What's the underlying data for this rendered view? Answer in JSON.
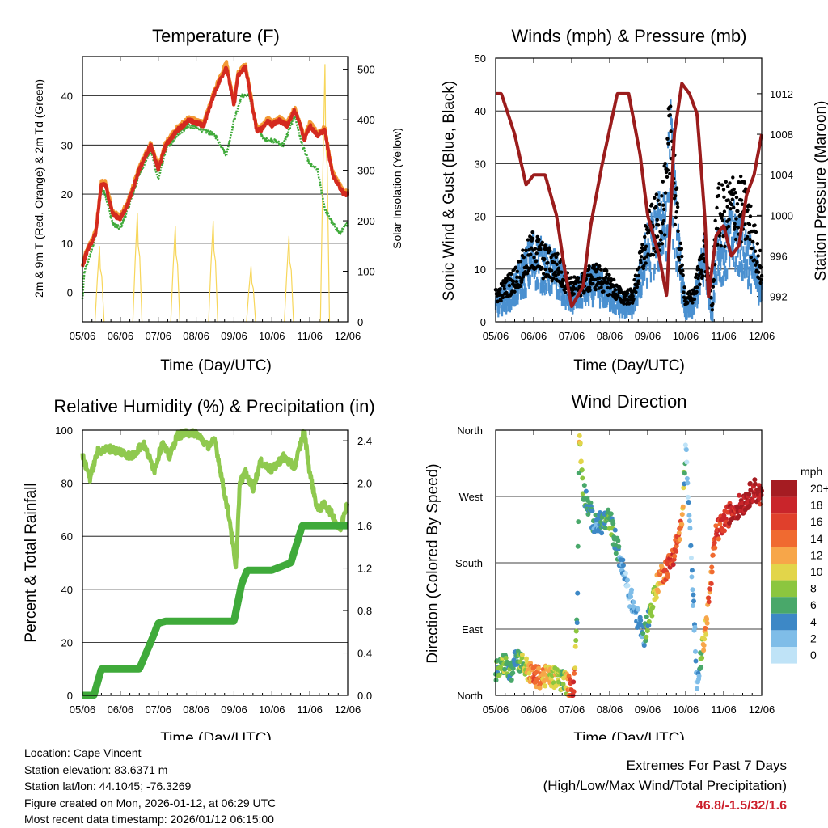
{
  "chart_data": [
    {
      "type": "line",
      "title": "Temperature (F)",
      "xlabel": "Time (Day/UTC)",
      "ylabel": "2m & 9m T (Red, Orange) & 2m Td (Green)",
      "y2label": "Solar Insolation (Yellow)",
      "x_ticks": [
        "05/06",
        "06/06",
        "07/06",
        "08/06",
        "09/06",
        "10/06",
        "11/06",
        "12/06"
      ],
      "ylim": [
        -6,
        48
      ],
      "y_ticks": [
        0,
        10,
        20,
        30,
        40
      ],
      "y2lim": [
        0,
        525
      ],
      "y2_ticks": [
        0,
        100,
        200,
        300,
        400,
        500
      ],
      "series": [
        {
          "name": "2m T",
          "color": "#d42a1f",
          "axis": "left",
          "x": [
            0,
            0.1,
            0.35,
            0.5,
            0.6,
            0.8,
            1.0,
            1.2,
            1.5,
            1.8,
            2.0,
            2.2,
            2.5,
            2.8,
            3.2,
            3.5,
            3.8,
            4.0,
            4.1,
            4.3,
            4.5,
            4.6,
            4.7,
            4.8,
            4.9,
            5.0,
            5.2,
            5.4,
            5.6,
            5.75,
            5.85,
            6.0,
            6.2,
            6.4,
            6.5,
            6.6,
            6.75,
            6.9,
            7.0
          ],
          "values": [
            5,
            8,
            12,
            22,
            22,
            16,
            15,
            18,
            25,
            30,
            25,
            30,
            33,
            35,
            34,
            41,
            46,
            38,
            44,
            46,
            37,
            33,
            33,
            34,
            35,
            34,
            35,
            34,
            37,
            34,
            31,
            34,
            32,
            33,
            28,
            24,
            22,
            20,
            20
          ]
        },
        {
          "name": "9m T",
          "color": "#f39a35",
          "axis": "left",
          "x": [
            0,
            0.1,
            0.35,
            0.5,
            0.6,
            0.8,
            1.0,
            1.2,
            1.5,
            1.8,
            2.0,
            2.2,
            2.5,
            2.8,
            3.2,
            3.5,
            3.8,
            4.0,
            4.1,
            4.3,
            4.5,
            4.6,
            4.7,
            4.8,
            4.9,
            5.0,
            5.2,
            5.4,
            5.6,
            5.75,
            5.85,
            6.0,
            6.2,
            6.4,
            6.5,
            6.6,
            6.75,
            6.9,
            7.0
          ],
          "values": [
            5.5,
            8.5,
            12.5,
            22.5,
            22.5,
            16.5,
            15.5,
            18.5,
            25.5,
            30.5,
            25.5,
            30.5,
            33.5,
            35.5,
            34.5,
            41.5,
            46.8,
            38.5,
            44.5,
            46.5,
            37.5,
            33.5,
            33.5,
            34.5,
            35.5,
            34.5,
            35.5,
            34.5,
            37.5,
            34.5,
            31.5,
            34.5,
            32.5,
            33.5,
            28.5,
            24.5,
            22.5,
            20.5,
            20.5
          ]
        },
        {
          "name": "2m Td",
          "color": "#3faa3a",
          "axis": "left",
          "x": [
            0,
            0.05,
            0.3,
            0.5,
            0.6,
            0.8,
            1.0,
            1.2,
            1.5,
            1.8,
            2.0,
            2.2,
            2.5,
            2.8,
            3.2,
            3.5,
            3.8,
            4.0,
            4.2,
            4.4,
            4.6,
            4.8,
            5.0,
            5.3,
            5.6,
            5.8,
            6.0,
            6.2,
            6.4,
            6.6,
            6.8,
            7.0
          ],
          "values": [
            -1.5,
            4,
            10,
            21,
            20,
            14,
            13,
            17,
            24,
            29,
            23,
            29,
            32,
            34,
            33,
            32,
            28,
            35,
            40,
            40,
            34,
            31,
            31,
            30,
            36,
            30,
            26,
            25,
            17,
            14,
            12,
            14
          ]
        },
        {
          "name": "Solar Insolation",
          "color": "#f7d65a",
          "axis": "right",
          "values_peaks": [
            {
              "day": 0.45,
              "value": 150
            },
            {
              "day": 1.45,
              "value": 215
            },
            {
              "day": 2.45,
              "value": 190
            },
            {
              "day": 3.45,
              "value": 200
            },
            {
              "day": 4.45,
              "value": 110
            },
            {
              "day": 5.45,
              "value": 170
            },
            {
              "day": 6.4,
              "value": 510
            }
          ]
        }
      ]
    },
    {
      "type": "line",
      "title": "Winds (mph) & Pressure (mb)",
      "xlabel": "Time (Day/UTC)",
      "ylabel": "Sonic Wind & Gust (Blue, Black)",
      "y2label": "Station Pressure (Maroon)",
      "x_ticks": [
        "05/06",
        "06/06",
        "07/06",
        "08/06",
        "09/06",
        "10/06",
        "11/06",
        "12/06"
      ],
      "ylim": [
        0,
        50
      ],
      "y_ticks": [
        0,
        10,
        20,
        30,
        40,
        50
      ],
      "y2lim": [
        989.5,
        1015.5
      ],
      "y2_ticks": [
        992,
        996,
        1000,
        1004,
        1008,
        1012
      ],
      "series": [
        {
          "name": "Sonic Wind",
          "color": "#4a90d0",
          "axis": "left",
          "x": [
            0,
            0.5,
            1.0,
            1.3,
            1.6,
            2.0,
            2.3,
            2.6,
            3.0,
            3.3,
            3.6,
            4.0,
            4.3,
            4.5,
            4.6,
            4.8,
            5.0,
            5.2,
            5.5,
            5.7,
            5.8,
            6.0,
            6.3,
            6.6,
            7.0
          ],
          "values": [
            4,
            7,
            13,
            11,
            10,
            5,
            7,
            8,
            6,
            4,
            4,
            14,
            18,
            22,
            32,
            14,
            3,
            4,
            13,
            2,
            15,
            14,
            17,
            14,
            7
          ]
        },
        {
          "name": "Gust",
          "color": "#000000",
          "axis": "left",
          "x": [
            0,
            0.5,
            1.0,
            1.3,
            1.6,
            2.0,
            2.3,
            2.6,
            3.0,
            3.3,
            3.6,
            4.0,
            4.3,
            4.5,
            4.6,
            4.8,
            5.0,
            5.2,
            5.5,
            5.7,
            5.8,
            6.0,
            6.3,
            6.6,
            7.0
          ],
          "values": [
            6,
            10,
            17,
            14,
            13,
            8,
            9,
            11,
            9,
            6,
            6,
            20,
            24,
            30,
            48,
            20,
            5,
            6,
            17,
            3,
            25,
            25,
            28,
            25,
            12
          ]
        },
        {
          "name": "Station Pressure",
          "color": "#9b1c1c",
          "axis": "right",
          "x": [
            0,
            0.15,
            0.5,
            0.8,
            1.0,
            1.3,
            1.6,
            1.8,
            2.0,
            2.3,
            2.5,
            2.8,
            3.2,
            3.5,
            3.8,
            4.0,
            4.3,
            4.5,
            4.7,
            4.9,
            5.1,
            5.3,
            5.5,
            5.6,
            5.8,
            6.0,
            6.2,
            6.4,
            6.6,
            6.8,
            7.0
          ],
          "values": [
            1012,
            1012,
            1008,
            1003,
            1004,
            1004,
            1000,
            995,
            991,
            993,
            999,
            1005,
            1012,
            1012,
            1006,
            1000,
            996,
            992,
            1008,
            1013,
            1012,
            1010,
            1000,
            992,
            998,
            999,
            996,
            997,
            1002,
            1004,
            1008
          ]
        }
      ]
    },
    {
      "type": "line",
      "title": "Relative Humidity (%) & Precipitation (in)",
      "xlabel": "Time (Day/UTC)",
      "ylabel": "Percent & Total Rainfall",
      "x_ticks": [
        "05/06",
        "06/06",
        "07/06",
        "08/06",
        "09/06",
        "10/06",
        "11/06",
        "12/06"
      ],
      "ylim": [
        0,
        100
      ],
      "y_ticks": [
        0,
        20,
        40,
        60,
        80,
        100
      ],
      "y2lim": [
        0,
        2.5
      ],
      "y2_ticks": [
        "0.0",
        "0.4",
        "0.8",
        "1.2",
        "1.6",
        "2.0",
        "2.4"
      ],
      "series": [
        {
          "name": "Relative Humidity",
          "color": "#8fc94f",
          "axis": "left",
          "x": [
            0,
            0.2,
            0.4,
            0.7,
            1.0,
            1.3,
            1.6,
            1.9,
            2.1,
            2.3,
            2.5,
            2.8,
            3.0,
            3.3,
            3.5,
            3.7,
            3.9,
            4.05,
            4.15,
            4.3,
            4.5,
            4.7,
            5.0,
            5.3,
            5.6,
            5.85,
            6.0,
            6.2,
            6.4,
            6.6,
            6.8,
            7.0
          ],
          "values": [
            90,
            82,
            92,
            93,
            92,
            90,
            95,
            85,
            95,
            90,
            98,
            99,
            99,
            94,
            96,
            80,
            65,
            47,
            80,
            84,
            78,
            88,
            85,
            90,
            86,
            100,
            84,
            70,
            72,
            68,
            62,
            74
          ]
        },
        {
          "name": "Total Precipitation",
          "color": "#3faa3a",
          "axis": "right",
          "x": [
            0,
            0.3,
            0.5,
            1.5,
            1.8,
            2.0,
            2.2,
            3.0,
            4.0,
            4.2,
            4.35,
            5.0,
            5.5,
            5.8,
            6.0,
            7.0
          ],
          "values": [
            0,
            0,
            0.25,
            0.25,
            0.5,
            0.68,
            0.7,
            0.7,
            0.7,
            1.05,
            1.18,
            1.18,
            1.25,
            1.6,
            1.6,
            1.6
          ]
        }
      ]
    },
    {
      "type": "scatter",
      "title": "Wind Direction",
      "xlabel": "Time (Day/UTC)",
      "ylabel": "Direction (Colored By Speed)",
      "x_ticks": [
        "05/06",
        "06/06",
        "07/06",
        "08/06",
        "09/06",
        "10/06",
        "11/06",
        "12/06"
      ],
      "y_ticks": [
        "North",
        "East",
        "South",
        "West",
        "North"
      ],
      "ylim": [
        0,
        360
      ],
      "legend_title": "mph",
      "legend_labels": [
        "20+",
        "18",
        "16",
        "14",
        "12",
        "10",
        "8",
        "6",
        "4",
        "2",
        "0"
      ],
      "legend_colors": [
        "#a51c22",
        "#c9252b",
        "#e0402c",
        "#f06a30",
        "#f7a649",
        "#e2d54a",
        "#8cc63f",
        "#49a86a",
        "#3d88c6",
        "#7fbde8",
        "#bfe3f7"
      ],
      "points_sketch": [
        {
          "x": 0.0,
          "y": 35,
          "v": 6
        },
        {
          "x": 0.2,
          "y": 45,
          "v": 8
        },
        {
          "x": 0.4,
          "y": 30,
          "v": 6
        },
        {
          "x": 0.5,
          "y": 55,
          "v": 4
        },
        {
          "x": 1.0,
          "y": 25,
          "v": 14
        },
        {
          "x": 1.5,
          "y": 25,
          "v": 10
        },
        {
          "x": 1.8,
          "y": 20,
          "v": 8
        },
        {
          "x": 2.05,
          "y": 5,
          "v": 18
        },
        {
          "x": 2.15,
          "y": 120,
          "v": 2
        },
        {
          "x": 2.2,
          "y": 360,
          "v": 10
        },
        {
          "x": 2.3,
          "y": 280,
          "v": 6
        },
        {
          "x": 2.6,
          "y": 230,
          "v": 4
        },
        {
          "x": 3.0,
          "y": 240,
          "v": 6
        },
        {
          "x": 3.5,
          "y": 140,
          "v": 2
        },
        {
          "x": 3.9,
          "y": 80,
          "v": 4
        },
        {
          "x": 4.3,
          "y": 160,
          "v": 12
        },
        {
          "x": 4.6,
          "y": 180,
          "v": 16
        },
        {
          "x": 4.9,
          "y": 230,
          "v": 14
        },
        {
          "x": 5.0,
          "y": 340,
          "v": 2
        },
        {
          "x": 5.3,
          "y": 20,
          "v": 2
        },
        {
          "x": 5.5,
          "y": 80,
          "v": 12
        },
        {
          "x": 5.8,
          "y": 220,
          "v": 16
        },
        {
          "x": 6.2,
          "y": 250,
          "v": 18
        },
        {
          "x": 6.5,
          "y": 260,
          "v": 20
        },
        {
          "x": 6.8,
          "y": 280,
          "v": 20
        },
        {
          "x": 7.0,
          "y": 270,
          "v": 18
        }
      ]
    }
  ],
  "info": {
    "location": "Location: Cape Vincent",
    "elevation": "Station elevation: 83.6371 m",
    "latlon": "Station lat/lon: 44.1045; -76.3269",
    "created": "Figure created on Mon, 2026-01-12, at 06:29 UTC",
    "recent": "Most recent data timestamp: 2026/01/12 06:15:00"
  },
  "extremes": {
    "title": "Extremes For Past 7 Days",
    "subtitle": "(High/Low/Max Wind/Total Precipitation)",
    "value": "46.8/-1.5/32/1.6"
  }
}
